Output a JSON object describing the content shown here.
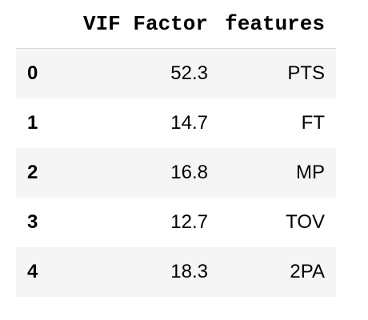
{
  "table": {
    "columns": {
      "index": "",
      "vif": "VIF Factor",
      "features": "features"
    },
    "rows": [
      {
        "index": "0",
        "vif": "52.3",
        "features": "PTS"
      },
      {
        "index": "1",
        "vif": "14.7",
        "features": "FT"
      },
      {
        "index": "2",
        "vif": "16.8",
        "features": "MP"
      },
      {
        "index": "3",
        "vif": "12.7",
        "features": "TOV"
      },
      {
        "index": "4",
        "vif": "18.3",
        "features": "2PA"
      }
    ]
  }
}
